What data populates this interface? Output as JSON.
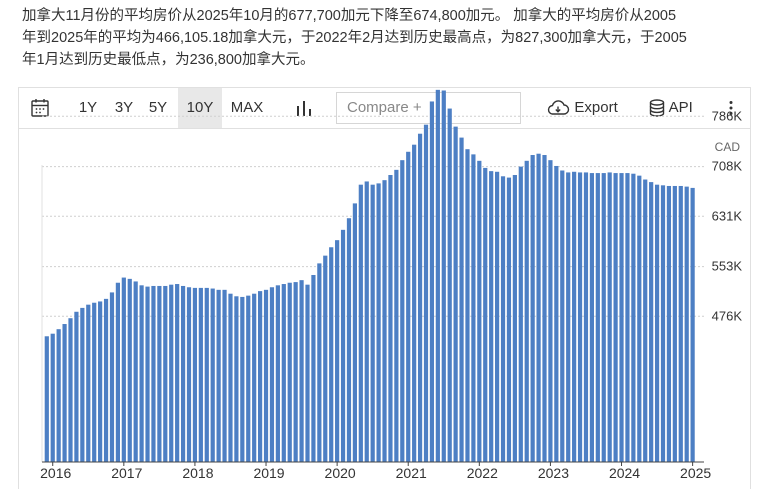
{
  "description": "加拿大11月份的平均房价从2025年10月的677,700加元下降至674,800加元。 加拿大的平均房价从2005年到2025年的平均为466,105.18加拿大元，于2022年2月达到历史最高点，为827,300加拿大元，于2005年1月达到历史最低点，为236,800加拿大元。",
  "description_lines": [
    "加拿大11月份的平均房价从2025年10月的677,700加元下降至674,800加元。 加拿大的平均房价从2005",
    "年到2025年的平均为466,105.18加拿大元，于2022年2月达到历史最高点，为827,300加拿大元，于2005",
    "年1月达到历史最低点，为236,800加拿大元。"
  ],
  "toolbar": {
    "ranges": [
      "1Y",
      "3Y",
      "5Y",
      "10Y",
      "MAX"
    ],
    "active_range": "10Y",
    "compare_placeholder": "Compare +",
    "export_label": "Export",
    "api_label": "API",
    "icons": {
      "calendar": "calendar-icon",
      "chart_type": "bar-chart-icon",
      "export": "cloud-download-icon",
      "api": "database-icon",
      "more": "more-vertical-icon"
    }
  },
  "chart_data": {
    "type": "bar",
    "unit": "CAD",
    "bar_color": "#4d7fc4",
    "y_ticks": [
      476,
      553,
      631,
      708,
      786
    ],
    "y_tick_labels": [
      "476K",
      "553K",
      "631K",
      "708K",
      "786K"
    ],
    "ylim": [
      420,
      860
    ],
    "x_tick_labels": [
      "2016",
      "2017",
      "2018",
      "2019",
      "2020",
      "2021",
      "2022",
      "2023",
      "2024",
      "2025"
    ],
    "grid": true,
    "start": "2015-12",
    "values": [
      445,
      449,
      456,
      464,
      473,
      483,
      489,
      494,
      497,
      499,
      503,
      513,
      528,
      536,
      534,
      530,
      524,
      522,
      523,
      523,
      523,
      525,
      526,
      523,
      521,
      520,
      520,
      520,
      519,
      517,
      517,
      511,
      507,
      506,
      508,
      511,
      515,
      517,
      521,
      524,
      526,
      528,
      529,
      532,
      525,
      540,
      558,
      570,
      583,
      594,
      610,
      628,
      651,
      680,
      685,
      680,
      682,
      687,
      695,
      703,
      718,
      731,
      742,
      759,
      773,
      809,
      827,
      826,
      798,
      770,
      753,
      735,
      727,
      717,
      706,
      701,
      700,
      693,
      691,
      695,
      708,
      717,
      726,
      728,
      726,
      718,
      709,
      702,
      699,
      700,
      699,
      699,
      698,
      698,
      698,
      699,
      698,
      698,
      698,
      697,
      694,
      688,
      684,
      680,
      679,
      678,
      678,
      678,
      677,
      675
    ]
  }
}
